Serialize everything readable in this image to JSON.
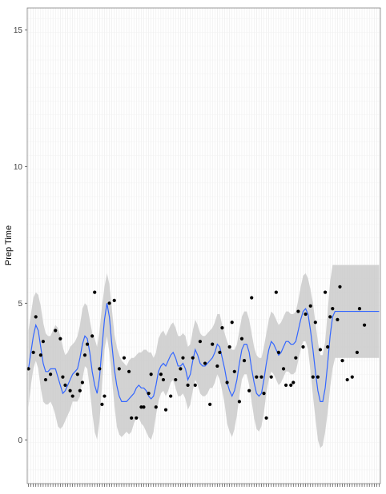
{
  "chart_data": {
    "type": "scatter",
    "title": "",
    "xlabel": "",
    "ylabel": "Prep Time",
    "ylim": [
      -1.6,
      15.8
    ],
    "yticks": [
      0,
      5,
      10,
      15
    ],
    "grid": true,
    "legend": "none",
    "x": [
      1,
      2,
      3,
      4,
      5,
      6,
      7,
      8,
      9,
      10,
      11,
      12,
      13,
      14,
      15,
      16,
      17,
      18,
      19,
      20,
      21,
      22,
      23,
      24,
      25,
      26,
      27,
      28,
      29,
      30,
      31,
      32,
      33,
      34,
      35,
      36,
      37,
      38,
      39,
      40,
      41,
      42,
      43,
      44,
      45,
      46,
      47,
      48,
      49,
      50,
      51,
      52,
      53,
      54,
      55,
      56,
      57,
      58,
      59,
      60,
      61,
      62,
      63,
      64,
      65,
      66,
      67,
      68,
      69,
      70,
      71,
      72,
      73,
      74,
      75,
      76,
      77,
      78,
      79,
      80,
      81,
      82,
      83,
      84,
      85,
      86,
      87,
      88,
      89,
      90,
      91,
      92,
      93,
      94,
      95,
      96,
      97,
      98,
      99,
      100,
      101,
      102,
      103,
      104,
      105,
      106,
      107,
      108,
      109,
      110,
      111,
      112,
      113,
      114,
      115,
      116,
      117,
      118,
      119,
      120,
      121,
      122,
      123,
      124,
      125,
      126,
      127,
      128,
      129,
      130,
      131,
      132,
      133,
      134,
      135,
      136,
      137,
      138,
      139,
      140,
      141,
      142,
      143,
      144
    ],
    "series": [
      {
        "role": "points",
        "color": "#000000",
        "points": [
          [
            1,
            2.6
          ],
          [
            3,
            3.2
          ],
          [
            4,
            4.5
          ],
          [
            6,
            3.1
          ],
          [
            7,
            3.6
          ],
          [
            8,
            2.2
          ],
          [
            10,
            2.4
          ],
          [
            12,
            4.0
          ],
          [
            14,
            3.7
          ],
          [
            15,
            2.3
          ],
          [
            16,
            2.0
          ],
          [
            18,
            1.8
          ],
          [
            19,
            1.6
          ],
          [
            21,
            2.4
          ],
          [
            22,
            1.8
          ],
          [
            23,
            2.1
          ],
          [
            24,
            3.1
          ],
          [
            25,
            3.5
          ],
          [
            27,
            3.8
          ],
          [
            28,
            5.4
          ],
          [
            30,
            2.6
          ],
          [
            31,
            1.3
          ],
          [
            32,
            1.6
          ],
          [
            34,
            5.0
          ],
          [
            36,
            5.1
          ],
          [
            38,
            2.6
          ],
          [
            40,
            3.0
          ],
          [
            42,
            2.5
          ],
          [
            43,
            0.8
          ],
          [
            45,
            0.8
          ],
          [
            47,
            1.2
          ],
          [
            48,
            1.2
          ],
          [
            50,
            1.7
          ],
          [
            51,
            2.4
          ],
          [
            53,
            1.2
          ],
          [
            55,
            2.4
          ],
          [
            56,
            2.2
          ],
          [
            57,
            1.1
          ],
          [
            59,
            1.6
          ],
          [
            61,
            2.2
          ],
          [
            63,
            2.6
          ],
          [
            64,
            3.0
          ],
          [
            66,
            2.0
          ],
          [
            68,
            3.0
          ],
          [
            69,
            2.0
          ],
          [
            71,
            3.6
          ],
          [
            73,
            2.8
          ],
          [
            75,
            1.3
          ],
          [
            76,
            3.5
          ],
          [
            78,
            2.7
          ],
          [
            79,
            3.2
          ],
          [
            80,
            4.1
          ],
          [
            82,
            2.1
          ],
          [
            83,
            3.4
          ],
          [
            84,
            4.3
          ],
          [
            85,
            2.5
          ],
          [
            87,
            1.4
          ],
          [
            88,
            3.7
          ],
          [
            89,
            2.9
          ],
          [
            91,
            1.8
          ],
          [
            92,
            5.2
          ],
          [
            94,
            2.3
          ],
          [
            96,
            2.3
          ],
          [
            97,
            1.7
          ],
          [
            98,
            0.8
          ],
          [
            100,
            2.3
          ],
          [
            102,
            5.4
          ],
          [
            103,
            3.2
          ],
          [
            105,
            2.6
          ],
          [
            106,
            2.0
          ],
          [
            108,
            2.0
          ],
          [
            109,
            2.1
          ],
          [
            110,
            3.0
          ],
          [
            111,
            4.7
          ],
          [
            113,
            3.4
          ],
          [
            114,
            4.6
          ],
          [
            116,
            4.9
          ],
          [
            117,
            2.3
          ],
          [
            118,
            4.3
          ],
          [
            119,
            2.3
          ],
          [
            120,
            3.3
          ],
          [
            122,
            5.4
          ],
          [
            123,
            3.4
          ],
          [
            124,
            4.5
          ],
          [
            125,
            4.8
          ],
          [
            127,
            4.4
          ],
          [
            128,
            5.6
          ],
          [
            129,
            2.9
          ],
          [
            131,
            2.2
          ],
          [
            133,
            2.3
          ],
          [
            135,
            3.2
          ],
          [
            136,
            4.8
          ],
          [
            138,
            4.2
          ]
        ]
      },
      {
        "role": "smooth",
        "color": "#3366ff",
        "band_color": "#c8c8c8",
        "x": [
          1,
          2,
          3,
          4,
          5,
          6,
          7,
          8,
          9,
          10,
          11,
          12,
          13,
          14,
          15,
          16,
          17,
          18,
          19,
          20,
          21,
          22,
          23,
          24,
          25,
          26,
          27,
          28,
          29,
          30,
          31,
          32,
          33,
          34,
          35,
          36,
          37,
          38,
          39,
          40,
          41,
          42,
          43,
          44,
          45,
          46,
          47,
          48,
          49,
          50,
          51,
          52,
          53,
          54,
          55,
          56,
          57,
          58,
          59,
          60,
          61,
          62,
          63,
          64,
          65,
          66,
          67,
          68,
          69,
          70,
          71,
          72,
          73,
          74,
          75,
          76,
          77,
          78,
          79,
          80,
          81,
          82,
          83,
          84,
          85,
          86,
          87,
          88,
          89,
          90,
          91,
          92,
          93,
          94,
          95,
          96,
          97,
          98,
          99,
          100,
          101,
          102,
          103,
          104,
          105,
          106,
          107,
          108,
          109,
          110,
          111,
          112,
          113,
          114,
          115,
          116,
          117,
          118,
          119,
          120,
          121,
          122,
          123,
          124,
          125,
          126,
          127,
          128,
          129,
          130,
          131,
          132,
          133,
          134,
          135,
          136,
          137,
          138,
          139,
          140,
          141,
          142,
          143,
          144
        ],
        "fit": [
          2.6,
          3.2,
          3.8,
          4.2,
          4.0,
          3.4,
          2.8,
          2.5,
          2.5,
          2.6,
          2.6,
          2.6,
          2.3,
          2.0,
          1.7,
          1.8,
          2.0,
          2.2,
          2.4,
          2.5,
          2.6,
          3.0,
          3.5,
          3.8,
          3.7,
          3.2,
          2.5,
          2.0,
          1.7,
          2.3,
          3.4,
          4.4,
          5.0,
          4.5,
          3.5,
          2.6,
          2.0,
          1.6,
          1.4,
          1.4,
          1.4,
          1.5,
          1.6,
          1.7,
          1.9,
          2.0,
          1.9,
          1.9,
          1.8,
          1.6,
          1.5,
          1.6,
          2.0,
          2.5,
          2.7,
          2.8,
          2.7,
          2.9,
          3.1,
          3.2,
          3.0,
          2.7,
          2.7,
          2.8,
          2.6,
          2.2,
          2.4,
          2.9,
          3.3,
          3.1,
          2.8,
          2.7,
          2.7,
          2.8,
          2.9,
          3.0,
          3.2,
          3.5,
          3.4,
          3.0,
          2.6,
          2.1,
          1.8,
          1.6,
          1.8,
          2.2,
          2.8,
          3.3,
          3.5,
          3.5,
          3.2,
          2.6,
          2.1,
          1.7,
          1.6,
          1.7,
          2.2,
          2.8,
          3.3,
          3.6,
          3.5,
          3.3,
          3.1,
          3.2,
          3.4,
          3.6,
          3.6,
          3.5,
          3.5,
          3.6,
          4.0,
          4.4,
          4.7,
          4.8,
          4.6,
          4.0,
          3.3,
          2.5,
          1.8,
          1.4,
          1.4,
          1.9,
          2.8,
          3.8,
          4.5,
          4.7,
          4.7,
          4.7,
          4.7,
          4.7,
          4.7,
          4.7,
          4.7,
          4.7,
          4.7,
          4.7,
          4.7,
          4.7,
          4.7,
          4.7,
          4.7,
          4.7,
          4.7,
          4.7
        ],
        "lower": [
          1.2,
          2.0,
          2.6,
          2.9,
          2.6,
          1.9,
          1.4,
          1.3,
          1.3,
          1.4,
          1.2,
          0.9,
          0.5,
          0.4,
          0.5,
          0.7,
          0.9,
          1.1,
          1.4,
          1.4,
          1.4,
          1.6,
          2.2,
          2.7,
          2.6,
          1.9,
          1.0,
          0.3,
          0.0,
          0.7,
          2.0,
          3.3,
          3.8,
          3.2,
          2.3,
          1.3,
          0.5,
          0.2,
          0.1,
          0.2,
          0.3,
          0.2,
          0.3,
          0.6,
          0.8,
          0.8,
          0.6,
          0.5,
          0.3,
          0.1,
          0.0,
          0.3,
          0.9,
          1.4,
          1.7,
          1.8,
          1.6,
          1.8,
          2.1,
          2.2,
          1.9,
          1.6,
          1.6,
          1.7,
          1.5,
          1.1,
          1.3,
          1.8,
          2.2,
          2.0,
          1.7,
          1.6,
          1.6,
          1.7,
          1.9,
          1.9,
          2.1,
          2.4,
          2.2,
          1.8,
          1.3,
          0.6,
          0.3,
          0.1,
          0.4,
          0.9,
          1.6,
          2.2,
          2.4,
          2.4,
          2.0,
          1.4,
          0.8,
          0.4,
          0.3,
          0.5,
          1.0,
          1.7,
          2.2,
          2.5,
          2.4,
          2.2,
          2.0,
          2.1,
          2.3,
          2.5,
          2.5,
          2.4,
          2.4,
          2.5,
          2.9,
          3.3,
          3.6,
          3.6,
          3.3,
          2.5,
          1.6,
          0.8,
          0.0,
          -0.3,
          -0.2,
          0.3,
          1.0,
          1.9,
          2.6,
          3.0,
          3.0,
          3.0,
          3.0,
          3.0,
          3.0,
          3.0,
          3.0,
          3.0,
          3.0,
          3.0,
          3.0,
          3.0,
          3.0,
          3.0,
          3.0,
          3.0,
          3.0,
          3.0
        ],
        "upper": [
          4.0,
          4.6,
          5.2,
          5.4,
          5.3,
          4.9,
          4.3,
          3.9,
          3.8,
          3.8,
          4.0,
          4.2,
          4.1,
          3.8,
          3.4,
          3.1,
          3.2,
          3.4,
          3.5,
          3.6,
          3.8,
          4.2,
          4.8,
          5.0,
          4.9,
          4.4,
          3.9,
          3.7,
          3.4,
          4.0,
          4.9,
          5.6,
          6.1,
          5.7,
          4.8,
          3.9,
          3.4,
          3.1,
          2.9,
          2.8,
          2.7,
          2.9,
          3.0,
          3.0,
          3.1,
          3.2,
          3.2,
          3.3,
          3.3,
          3.2,
          3.2,
          3.0,
          3.2,
          3.7,
          3.9,
          4.0,
          3.8,
          4.0,
          4.2,
          4.3,
          4.1,
          3.8,
          3.8,
          3.9,
          3.8,
          3.4,
          3.5,
          4.0,
          4.4,
          4.2,
          3.9,
          3.8,
          3.8,
          3.9,
          4.0,
          4.1,
          4.3,
          4.6,
          4.6,
          4.2,
          3.9,
          3.6,
          3.4,
          3.3,
          3.3,
          3.5,
          4.0,
          4.5,
          4.7,
          4.7,
          4.4,
          3.9,
          3.4,
          3.1,
          3.0,
          3.0,
          3.4,
          3.9,
          4.4,
          4.7,
          4.6,
          4.4,
          4.2,
          4.3,
          4.5,
          4.7,
          4.7,
          4.6,
          4.6,
          4.7,
          5.1,
          5.6,
          6.0,
          6.1,
          5.9,
          5.5,
          5.0,
          4.3,
          3.6,
          3.1,
          3.1,
          3.6,
          4.7,
          5.8,
          6.4,
          6.4,
          6.4,
          6.4,
          6.4,
          6.4,
          6.4,
          6.4,
          6.4,
          6.4,
          6.4,
          6.4,
          6.4,
          6.4,
          6.4,
          6.4,
          6.4,
          6.4,
          6.4,
          6.4
        ]
      }
    ]
  }
}
